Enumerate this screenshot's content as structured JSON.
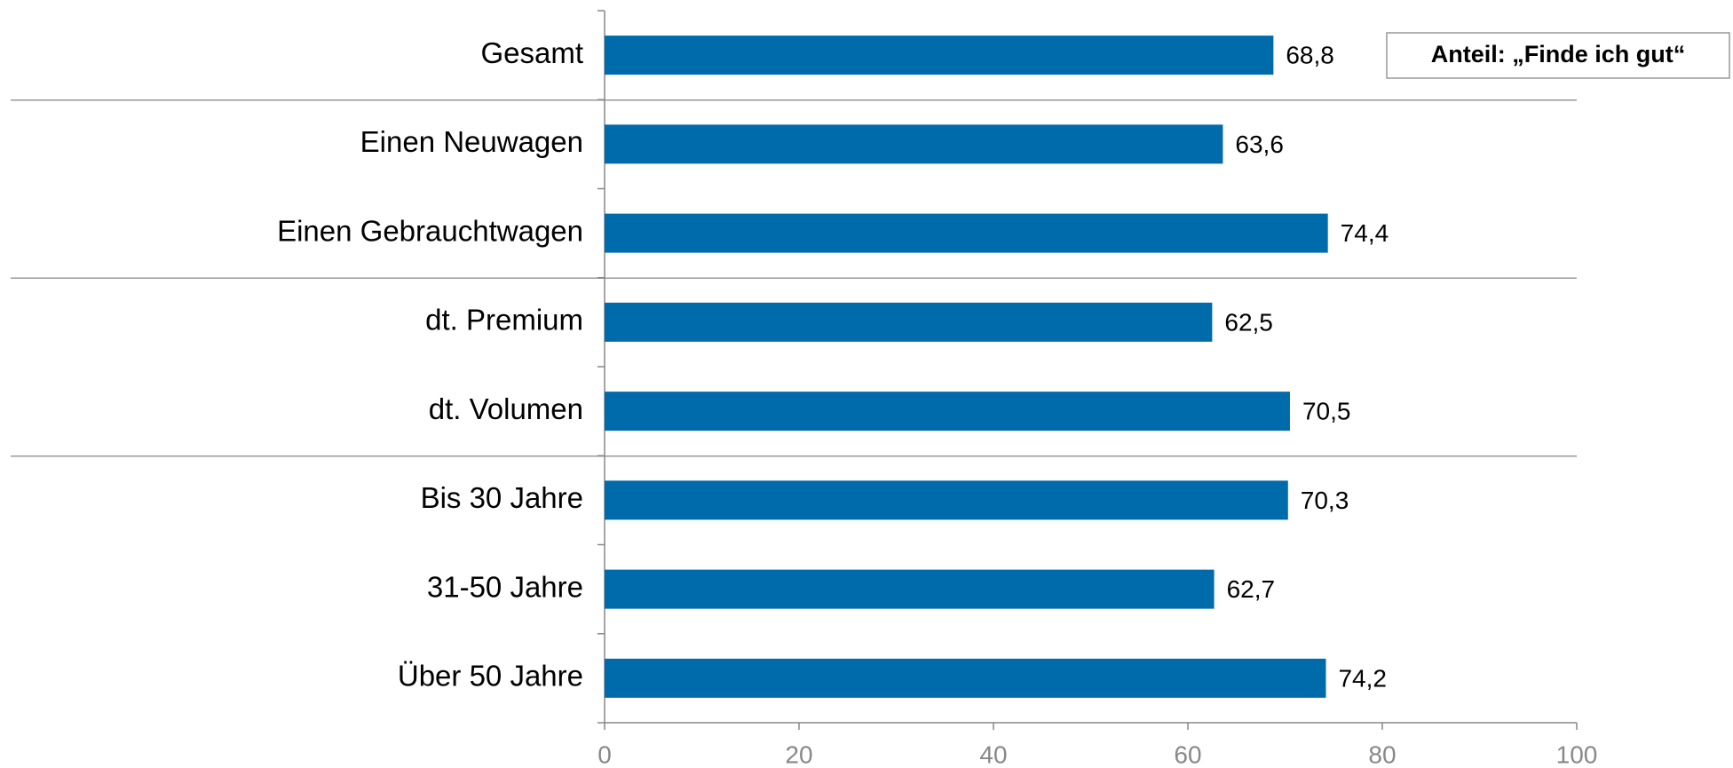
{
  "chart_data": {
    "type": "bar",
    "orientation": "horizontal",
    "annotation": "Anteil: „Finde ich gut“",
    "categories": [
      "Gesamt",
      "Einen Neuwagen",
      "Einen Gebrauchtwagen",
      "dt. Premium",
      "dt. Volumen",
      "Bis 30 Jahre",
      "31-50 Jahre",
      "Über 50 Jahre"
    ],
    "values": [
      68.8,
      63.6,
      74.4,
      62.5,
      70.5,
      70.3,
      62.7,
      74.2
    ],
    "value_labels": [
      "68,8",
      "63,6",
      "74,4",
      "62,5",
      "70,5",
      "70,3",
      "62,7",
      "74,2"
    ],
    "color": "#006bab",
    "xlim": [
      0,
      100
    ],
    "xticks": [
      0,
      20,
      40,
      60,
      80,
      100
    ],
    "grid": false
  }
}
